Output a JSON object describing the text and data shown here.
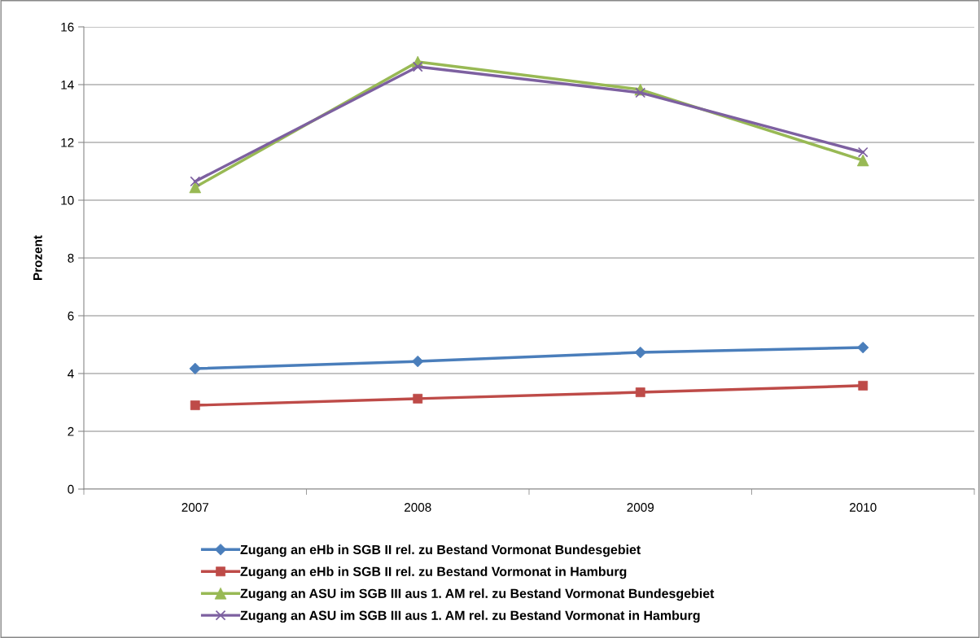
{
  "chart_data": {
    "type": "line",
    "ylabel": "Prozent",
    "categories": [
      "2007",
      "2008",
      "2009",
      "2010"
    ],
    "ylim": [
      0,
      16
    ],
    "yticks": [
      0,
      2,
      4,
      6,
      8,
      10,
      12,
      14,
      16
    ],
    "grid": "y",
    "legend": "bottom",
    "series": [
      {
        "name": "Zugang an eHb in SGB II rel. zu Bestand Vormonat Bundesgebiet",
        "color": "#4a7ebb",
        "marker": "diamond",
        "values": [
          4.17,
          4.42,
          4.73,
          4.9
        ]
      },
      {
        "name": "Zugang an eHb in SGB II rel. zu Bestand Vormonat in Hamburg",
        "color": "#be4b48",
        "marker": "square",
        "values": [
          2.9,
          3.13,
          3.35,
          3.58
        ]
      },
      {
        "name": "Zugang an ASU im SGB III aus 1. AM rel. zu Bestand Vormonat Bundesgebiet",
        "color": "#98b954",
        "marker": "triangle",
        "values": [
          10.45,
          14.79,
          13.83,
          11.38
        ]
      },
      {
        "name": "Zugang an ASU im SGB III aus 1. AM rel. zu Bestand Vormonat in Hamburg",
        "color": "#7d60a0",
        "marker": "cross",
        "values": [
          10.65,
          14.62,
          13.72,
          11.66
        ]
      }
    ]
  }
}
